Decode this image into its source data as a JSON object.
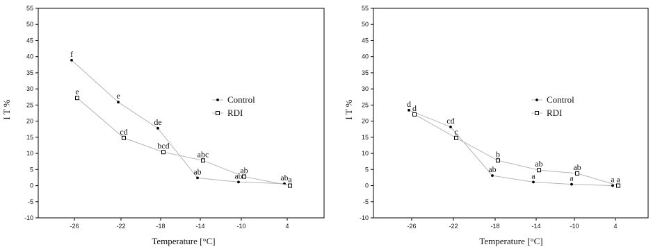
{
  "chart_data": [
    {
      "type": "line",
      "xlabel": "Temperature [°C]",
      "ylabel": "I T %",
      "ylim": [
        -10,
        55
      ],
      "yticks": [
        -10,
        -5,
        0,
        5,
        10,
        15,
        20,
        25,
        30,
        35,
        40,
        45,
        50,
        55
      ],
      "x_tick_labels": [
        "-26",
        "-22",
        "-18",
        "-14",
        "-10",
        "4"
      ],
      "grid": false,
      "legend_position": "center-right",
      "series": [
        {
          "name": "Control",
          "marker": "dot",
          "x": [
            "-26",
            "-22",
            "-18",
            "-14",
            "-10",
            "4"
          ],
          "y": [
            38.9,
            25.9,
            17.8,
            2.4,
            1.1,
            0.6
          ],
          "letters": [
            "f",
            "e",
            "de",
            "ab",
            "ab",
            "ab"
          ]
        },
        {
          "name": "RDI",
          "marker": "square",
          "x": [
            "-26",
            "-22",
            "-18",
            "-14",
            "-10",
            "4"
          ],
          "y": [
            27.2,
            14.8,
            10.4,
            7.8,
            2.8,
            0.0
          ],
          "letters": [
            "e",
            "cd",
            "bcd",
            "abc",
            "ab",
            "a"
          ]
        }
      ]
    },
    {
      "type": "line",
      "xlabel": "Temperature [°C]",
      "ylabel": "I T %",
      "ylim": [
        -10,
        55
      ],
      "yticks": [
        -10,
        -5,
        0,
        5,
        10,
        15,
        20,
        25,
        30,
        35,
        40,
        45,
        50,
        55
      ],
      "x_tick_labels": [
        "-26",
        "-22",
        "-18",
        "-14",
        "-10",
        "4"
      ],
      "grid": false,
      "legend_position": "center-right",
      "series": [
        {
          "name": "Control",
          "marker": "dot",
          "x": [
            "-26",
            "-22",
            "-18",
            "-14",
            "-10",
            "4"
          ],
          "y": [
            23.4,
            18.2,
            3.1,
            1.1,
            0.4,
            0.0
          ],
          "letters": [
            "d",
            "cd",
            "ab",
            "a",
            "a",
            "a"
          ]
        },
        {
          "name": "RDI",
          "marker": "square",
          "x": [
            "-26",
            "-22",
            "-18",
            "-14",
            "-10",
            "4"
          ],
          "y": [
            22.1,
            14.8,
            7.8,
            4.8,
            3.8,
            0.0
          ],
          "letters": [
            "d",
            "c",
            "b",
            "ab",
            "ab",
            "a"
          ]
        }
      ]
    }
  ]
}
